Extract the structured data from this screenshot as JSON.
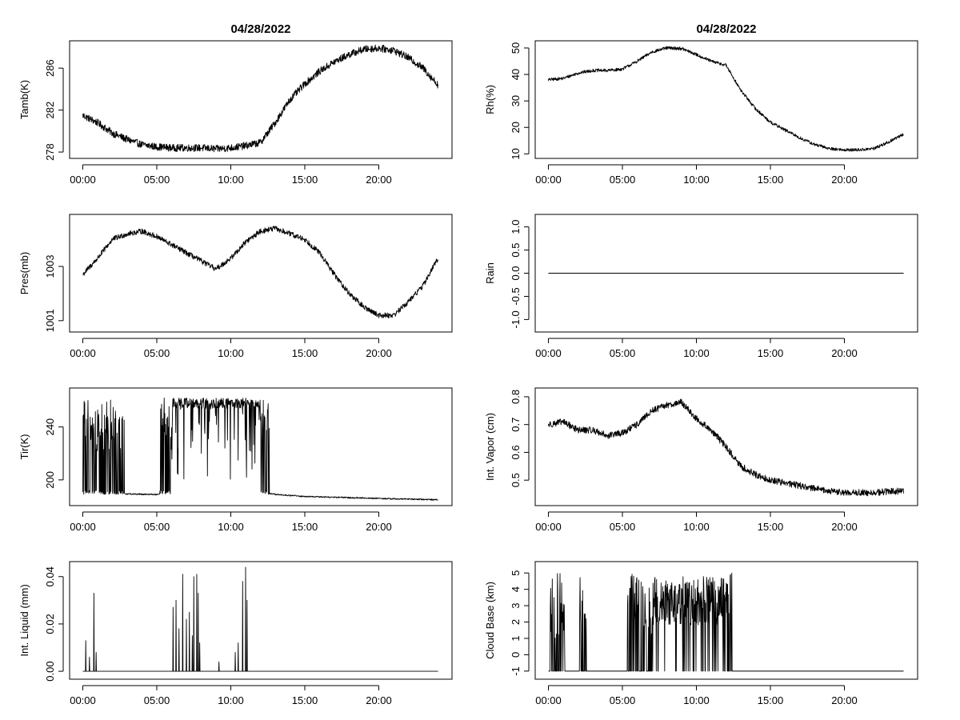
{
  "figure": {
    "titles": [
      "04/28/2022",
      "04/28/2022"
    ],
    "colors": {
      "line": "#000000",
      "frame": "#000000",
      "background": "#ffffff"
    }
  },
  "chart_data": [
    {
      "type": "line",
      "col": 0,
      "row": 0,
      "title": "04/28/2022",
      "ylabel": "Tamb(K)",
      "xlabel": "",
      "xlim": [
        0,
        24
      ],
      "ylim": [
        277.7,
        288.3
      ],
      "xticks": [
        0,
        5,
        10,
        15,
        20
      ],
      "xtick_labels": [
        "00:00",
        "05:00",
        "10:00",
        "15:00",
        "20:00"
      ],
      "yticks": [
        278,
        282,
        286
      ],
      "ytick_labels": [
        "278",
        "282",
        "286"
      ],
      "profile": [
        [
          0,
          281.5
        ],
        [
          1,
          280.8
        ],
        [
          2,
          279.8
        ],
        [
          3,
          279.2
        ],
        [
          4,
          278.7
        ],
        [
          5,
          278.5
        ],
        [
          6,
          278.4
        ],
        [
          7,
          278.4
        ],
        [
          8,
          278.4
        ],
        [
          9,
          278.3
        ],
        [
          10,
          278.4
        ],
        [
          11,
          278.6
        ],
        [
          12,
          278.9
        ],
        [
          13,
          280.8
        ],
        [
          14,
          283.0
        ],
        [
          15,
          284.5
        ],
        [
          16,
          285.7
        ],
        [
          17,
          286.6
        ],
        [
          18,
          287.3
        ],
        [
          19,
          287.8
        ],
        [
          20,
          287.9
        ],
        [
          21,
          287.7
        ],
        [
          22,
          287.0
        ],
        [
          23,
          286.0
        ],
        [
          24,
          284.4
        ]
      ],
      "noise": 0.35,
      "mode": "noise"
    },
    {
      "type": "line",
      "col": 1,
      "row": 0,
      "title": "04/28/2022",
      "ylabel": "Rh(%)",
      "xlabel": "",
      "xlim": [
        0,
        24
      ],
      "ylim": [
        9.5,
        51.5
      ],
      "xticks": [
        0,
        5,
        10,
        15,
        20
      ],
      "xtick_labels": [
        "00:00",
        "05:00",
        "10:00",
        "15:00",
        "20:00"
      ],
      "yticks": [
        10,
        20,
        30,
        40,
        50
      ],
      "ytick_labels": [
        "10",
        "20",
        "30",
        "40",
        "50"
      ],
      "profile": [
        [
          0,
          38
        ],
        [
          1,
          38.5
        ],
        [
          2,
          40.5
        ],
        [
          3,
          41.5
        ],
        [
          4,
          41.5
        ],
        [
          5,
          42
        ],
        [
          6,
          45
        ],
        [
          7,
          48.5
        ],
        [
          8,
          50
        ],
        [
          9,
          49.8
        ],
        [
          10,
          47.5
        ],
        [
          11,
          45
        ],
        [
          12,
          43.5
        ],
        [
          13,
          34
        ],
        [
          14,
          27
        ],
        [
          15,
          22
        ],
        [
          16,
          19
        ],
        [
          17,
          16
        ],
        [
          18,
          13.5
        ],
        [
          19,
          12
        ],
        [
          20,
          11.5
        ],
        [
          21,
          11.5
        ],
        [
          22,
          12
        ],
        [
          23,
          14.5
        ],
        [
          24,
          17.5
        ]
      ],
      "noise": 0.6,
      "mode": "noise"
    },
    {
      "type": "line",
      "col": 0,
      "row": 1,
      "title": "",
      "ylabel": "Pres(mb)",
      "xlabel": "",
      "xlim": [
        0,
        24
      ],
      "ylim": [
        1000.7,
        1004.8
      ],
      "xticks": [
        0,
        5,
        10,
        15,
        20
      ],
      "xtick_labels": [
        "00:00",
        "05:00",
        "10:00",
        "15:00",
        "20:00"
      ],
      "yticks": [
        1001,
        1003
      ],
      "ytick_labels": [
        "1001",
        "1003"
      ],
      "profile": [
        [
          0,
          1002.7
        ],
        [
          1,
          1003.3
        ],
        [
          2,
          1004.0
        ],
        [
          3,
          1004.2
        ],
        [
          4,
          1004.3
        ],
        [
          5,
          1004.1
        ],
        [
          6,
          1003.8
        ],
        [
          7,
          1003.5
        ],
        [
          8,
          1003.2
        ],
        [
          9,
          1002.9
        ],
        [
          10,
          1003.3
        ],
        [
          11,
          1003.9
        ],
        [
          12,
          1004.3
        ],
        [
          13,
          1004.4
        ],
        [
          14,
          1004.2
        ],
        [
          15,
          1004.0
        ],
        [
          16,
          1003.5
        ],
        [
          17,
          1002.7
        ],
        [
          18,
          1002.0
        ],
        [
          19,
          1001.5
        ],
        [
          20,
          1001.2
        ],
        [
          21,
          1001.2
        ],
        [
          22,
          1001.7
        ],
        [
          23,
          1002.3
        ],
        [
          24,
          1003.3
        ]
      ],
      "noise": 0.1,
      "mode": "noise"
    },
    {
      "type": "line",
      "col": 1,
      "row": 1,
      "title": "",
      "ylabel": "Rain",
      "xlabel": "",
      "xlim": [
        0,
        24
      ],
      "ylim": [
        -1.2,
        1.2
      ],
      "xticks": [
        0,
        5,
        10,
        15,
        20
      ],
      "xtick_labels": [
        "00:00",
        "05:00",
        "10:00",
        "15:00",
        "20:00"
      ],
      "yticks": [
        -1.0,
        -0.5,
        0.0,
        0.5,
        1.0
      ],
      "ytick_labels": [
        "-1.0",
        "-0.5",
        "0.0",
        "0.5",
        "1.0"
      ],
      "profile": [
        [
          0,
          0
        ],
        [
          24,
          0
        ]
      ],
      "noise": 0,
      "mode": "flat"
    },
    {
      "type": "line",
      "col": 0,
      "row": 2,
      "title": "",
      "ylabel": "Tir(K)",
      "xlabel": "",
      "xlim": [
        0,
        24
      ],
      "ylim": [
        183,
        267
      ],
      "xticks": [
        0,
        5,
        10,
        15,
        20
      ],
      "xtick_labels": [
        "00:00",
        "05:00",
        "10:00",
        "15:00",
        "20:00"
      ],
      "yticks": [
        200,
        240
      ],
      "ytick_labels": [
        "200",
        "240"
      ],
      "baseline": [
        [
          0,
          190
        ],
        [
          5,
          189
        ],
        [
          12.5,
          190
        ],
        [
          13,
          189
        ],
        [
          15,
          187.5
        ],
        [
          20,
          186
        ],
        [
          24,
          185
        ]
      ],
      "high": 262,
      "spiky_ranges": [
        [
          0,
          2.8
        ],
        [
          5.2,
          12.6
        ]
      ],
      "noise": 0.5,
      "mode": "tir"
    },
    {
      "type": "line",
      "col": 1,
      "row": 2,
      "title": "",
      "ylabel": "Int. Vapor (cm)",
      "xlabel": "",
      "xlim": [
        0,
        24
      ],
      "ylim": [
        0.42,
        0.82
      ],
      "xticks": [
        0,
        5,
        10,
        15,
        20
      ],
      "xtick_labels": [
        "00:00",
        "05:00",
        "10:00",
        "15:00",
        "20:00"
      ],
      "yticks": [
        0.5,
        0.6,
        0.7,
        0.8
      ],
      "ytick_labels": [
        "0.5",
        "0.6",
        "0.7",
        "0.8"
      ],
      "profile": [
        [
          0,
          0.7
        ],
        [
          1,
          0.71
        ],
        [
          2,
          0.68
        ],
        [
          3,
          0.68
        ],
        [
          4,
          0.66
        ],
        [
          5,
          0.67
        ],
        [
          6,
          0.7
        ],
        [
          7,
          0.75
        ],
        [
          8,
          0.77
        ],
        [
          9,
          0.78
        ],
        [
          10,
          0.72
        ],
        [
          11,
          0.68
        ],
        [
          12,
          0.62
        ],
        [
          13,
          0.55
        ],
        [
          14,
          0.52
        ],
        [
          15,
          0.5
        ],
        [
          16,
          0.49
        ],
        [
          17,
          0.48
        ],
        [
          18,
          0.47
        ],
        [
          19,
          0.46
        ],
        [
          20,
          0.455
        ],
        [
          21,
          0.455
        ],
        [
          22,
          0.455
        ],
        [
          23,
          0.46
        ],
        [
          24,
          0.46
        ]
      ],
      "noise": 0.012,
      "mode": "noise"
    },
    {
      "type": "line",
      "col": 0,
      "row": 3,
      "title": "",
      "ylabel": "Int. Liquid (mm)",
      "xlabel": "",
      "xlim": [
        0,
        24
      ],
      "ylim": [
        -0.002,
        0.045
      ],
      "xticks": [
        0,
        5,
        10,
        15,
        20
      ],
      "xtick_labels": [
        "00:00",
        "05:00",
        "10:00",
        "15:00",
        "20:00"
      ],
      "yticks": [
        0.0,
        0.02,
        0.04
      ],
      "ytick_labels": [
        "0.00",
        "0.02",
        "0.04"
      ],
      "spikes": [
        [
          0.2,
          0.013
        ],
        [
          0.45,
          0.006
        ],
        [
          0.75,
          0.033
        ],
        [
          0.9,
          0.008
        ],
        [
          6.1,
          0.027
        ],
        [
          6.3,
          0.03
        ],
        [
          6.5,
          0.018
        ],
        [
          6.75,
          0.041
        ],
        [
          7.0,
          0.022
        ],
        [
          7.2,
          0.025
        ],
        [
          7.4,
          0.015
        ],
        [
          7.5,
          0.04
        ],
        [
          7.7,
          0.041
        ],
        [
          7.8,
          0.033
        ],
        [
          7.9,
          0.012
        ],
        [
          9.2,
          0.004
        ],
        [
          10.3,
          0.008
        ],
        [
          10.5,
          0.012
        ],
        [
          10.8,
          0.038
        ],
        [
          11.0,
          0.044
        ],
        [
          11.1,
          0.03
        ]
      ],
      "noise": 0,
      "mode": "spikes"
    },
    {
      "type": "line",
      "col": 1,
      "row": 3,
      "title": "",
      "ylabel": "Cloud Base (km)",
      "xlabel": "",
      "xlim": [
        0,
        24
      ],
      "ylim": [
        -1.3,
        5.5
      ],
      "xticks": [
        0,
        5,
        10,
        15,
        20
      ],
      "xtick_labels": [
        "00:00",
        "05:00",
        "10:00",
        "15:00",
        "20:00"
      ],
      "yticks": [
        -1,
        0,
        1,
        2,
        3,
        4,
        5
      ],
      "ytick_labels": [
        "-1",
        "0",
        "1",
        "2",
        "3",
        "4",
        "5"
      ],
      "baseline_value": -1,
      "ranges": [
        [
          0.1,
          1.1
        ],
        [
          2.1,
          2.6
        ],
        [
          5.3,
          12.4
        ]
      ],
      "noise": 0,
      "mode": "cloud"
    }
  ]
}
